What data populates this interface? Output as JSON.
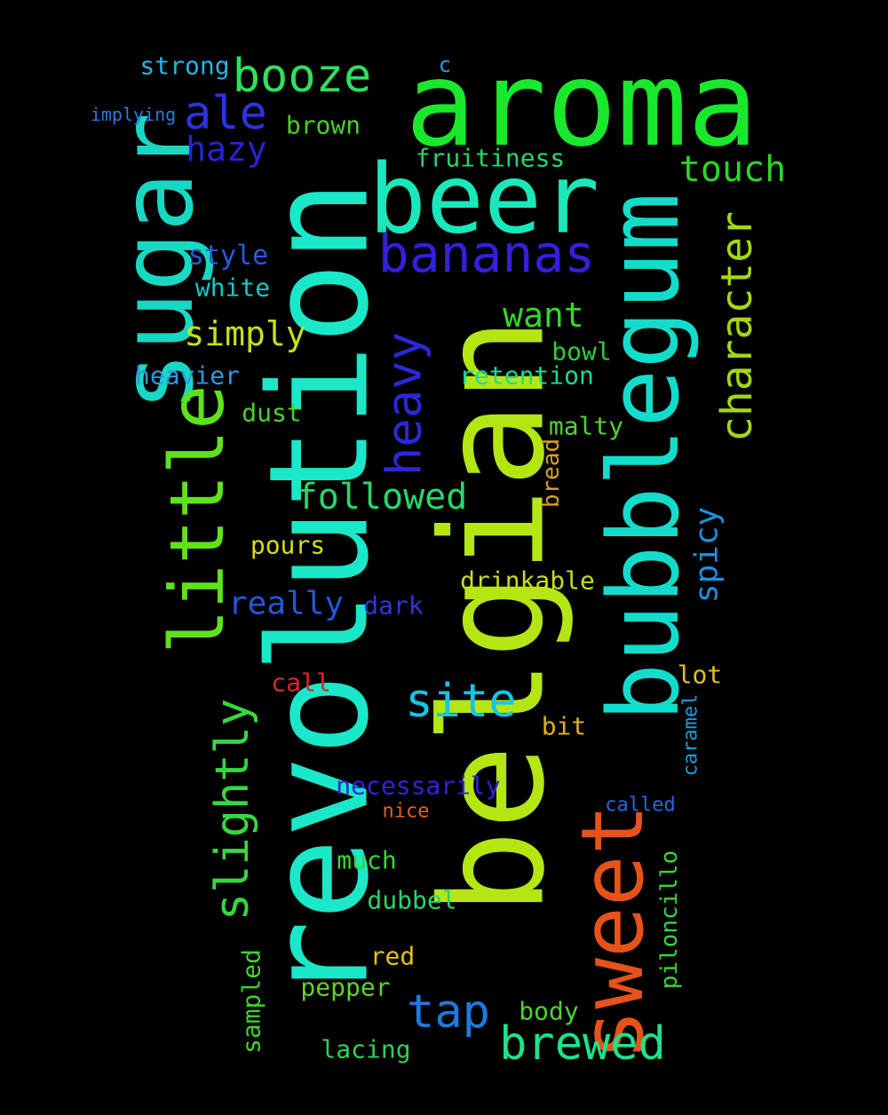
{
  "words": [
    {
      "text": "aroma",
      "color": "#1ae82c"
    },
    {
      "text": "revolution",
      "color": "#1ae8c8"
    },
    {
      "text": "belgian",
      "color": "#b4e614"
    },
    {
      "text": "beer",
      "color": "#1ae8ba"
    },
    {
      "text": "bubblegum",
      "color": "#14dccb"
    },
    {
      "text": "sugar",
      "color": "#18d8c4"
    },
    {
      "text": "sweet",
      "color": "#e5521a"
    },
    {
      "text": "little",
      "color": "#5ee21a"
    },
    {
      "text": "bananas",
      "color": "#3420dc"
    },
    {
      "text": "booze",
      "color": "#2ee05e"
    },
    {
      "text": "ale",
      "color": "#2c34dc"
    },
    {
      "text": "hazy",
      "color": "#2524d8"
    },
    {
      "text": "heavy",
      "color": "#2a28d6"
    },
    {
      "text": "character",
      "color": "#a2d814"
    },
    {
      "text": "slightly",
      "color": "#36d840"
    },
    {
      "text": "site",
      "color": "#14c6e6"
    },
    {
      "text": "tap",
      "color": "#1e7ae0"
    },
    {
      "text": "brewed",
      "color": "#1ee28a"
    },
    {
      "text": "touch",
      "color": "#2ed628"
    },
    {
      "text": "want",
      "color": "#3ad42c"
    },
    {
      "text": "simply",
      "color": "#c4e01e"
    },
    {
      "text": "followed",
      "color": "#26d86c"
    },
    {
      "text": "spicy",
      "color": "#1a92e0"
    },
    {
      "text": "really",
      "color": "#2457da"
    },
    {
      "text": "strong",
      "color": "#2ab2e2"
    },
    {
      "text": "c",
      "color": "#2a9ce0"
    },
    {
      "text": "implying",
      "color": "#2a7ae0"
    },
    {
      "text": "brown",
      "color": "#4ad028"
    },
    {
      "text": "fruitiness",
      "color": "#2ad46a"
    },
    {
      "text": "style",
      "color": "#2a5ae0"
    },
    {
      "text": "white",
      "color": "#1ac8c6"
    },
    {
      "text": "bowl",
      "color": "#30cc3a"
    },
    {
      "text": "retention",
      "color": "#1adc96"
    },
    {
      "text": "heavier",
      "color": "#2a9ae0"
    },
    {
      "text": "dust",
      "color": "#4ad22c"
    },
    {
      "text": "malty",
      "color": "#4ed434"
    },
    {
      "text": "bread",
      "color": "#d8a220"
    },
    {
      "text": "pours",
      "color": "#d8dc1a"
    },
    {
      "text": "drinkable",
      "color": "#c8dc22"
    },
    {
      "text": "dark",
      "color": "#2a3ad8"
    },
    {
      "text": "call",
      "color": "#d82a2a"
    },
    {
      "text": "lot",
      "color": "#e0c21a"
    },
    {
      "text": "bit",
      "color": "#e0b01a"
    },
    {
      "text": "caramel",
      "color": "#1a9ce0"
    },
    {
      "text": "necessarily",
      "color": "#3422d8"
    },
    {
      "text": "nice",
      "color": "#e0641a"
    },
    {
      "text": "called",
      "color": "#2a64e0"
    },
    {
      "text": "much",
      "color": "#3ad438"
    },
    {
      "text": "piloncillo",
      "color": "#3ad43a"
    },
    {
      "text": "dubbel",
      "color": "#2ad46a"
    },
    {
      "text": "sampled",
      "color": "#40d42a"
    },
    {
      "text": "red",
      "color": "#e0c21a"
    },
    {
      "text": "pepper",
      "color": "#5ed42a"
    },
    {
      "text": "body",
      "color": "#4ed42a"
    },
    {
      "text": "lacing",
      "color": "#30d05a"
    }
  ]
}
